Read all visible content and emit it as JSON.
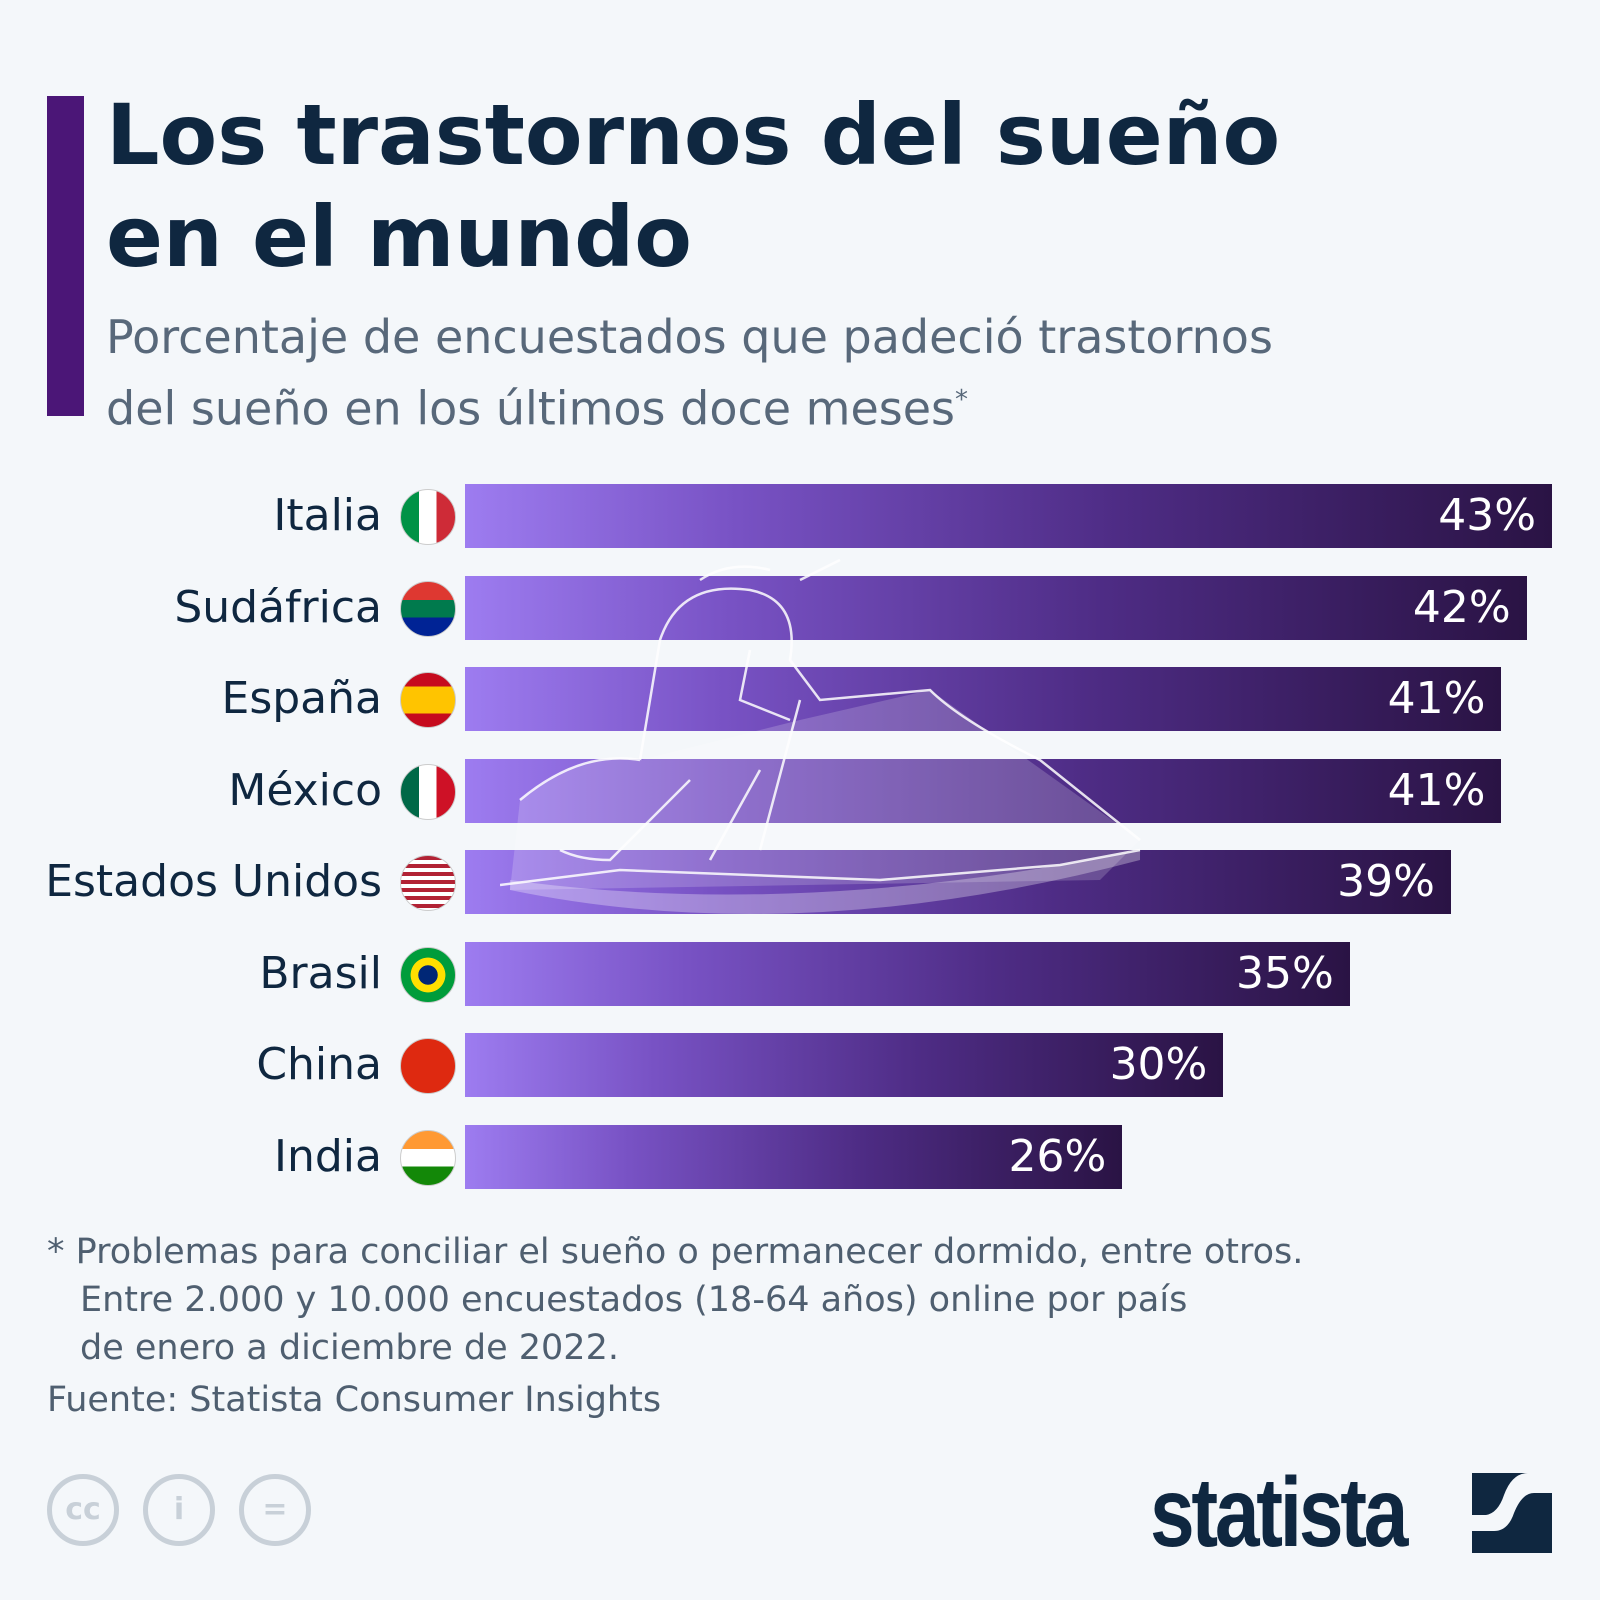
{
  "title_line1": "Los trastornos del sueño",
  "title_line2": "en el mundo",
  "subtitle_line1": "Porcentaje de encuestados que padeció trastornos",
  "subtitle_line2": "del sueño en los últimos doce meses",
  "subtitle_mark": "*",
  "colors": {
    "accent": "#4b1677",
    "bar_light": "#9d7cf0",
    "bar_dark": "#2a1344",
    "text": "#0f2740"
  },
  "chart_data": {
    "type": "bar",
    "orientation": "horizontal",
    "categories": [
      "Italia",
      "Sudáfrica",
      "España",
      "México",
      "Estados Unidos",
      "Brasil",
      "China",
      "India"
    ],
    "values": [
      43,
      42,
      41,
      41,
      39,
      35,
      30,
      26
    ],
    "value_labels": [
      "43%",
      "42%",
      "41%",
      "41%",
      "39%",
      "35%",
      "30%",
      "26%"
    ],
    "flags": [
      "italy-flag",
      "south-africa-flag",
      "spain-flag",
      "mexico-flag",
      "usa-flag",
      "brazil-flag",
      "china-flag",
      "india-flag"
    ],
    "unit": "%",
    "xlim": [
      0,
      43
    ],
    "grid": false
  },
  "footnote": [
    "* Problemas para conciliar el sueño o permanecer dormido, entre otros.",
    "Entre 2.000 y 10.000 encuestados (18-64 años) online por país",
    "de enero a diciembre de 2022."
  ],
  "source": "Fuente: Statista Consumer Insights",
  "license_icons": [
    "cc-icon",
    "attribution-icon",
    "no-derivatives-icon"
  ],
  "logo": "statista"
}
